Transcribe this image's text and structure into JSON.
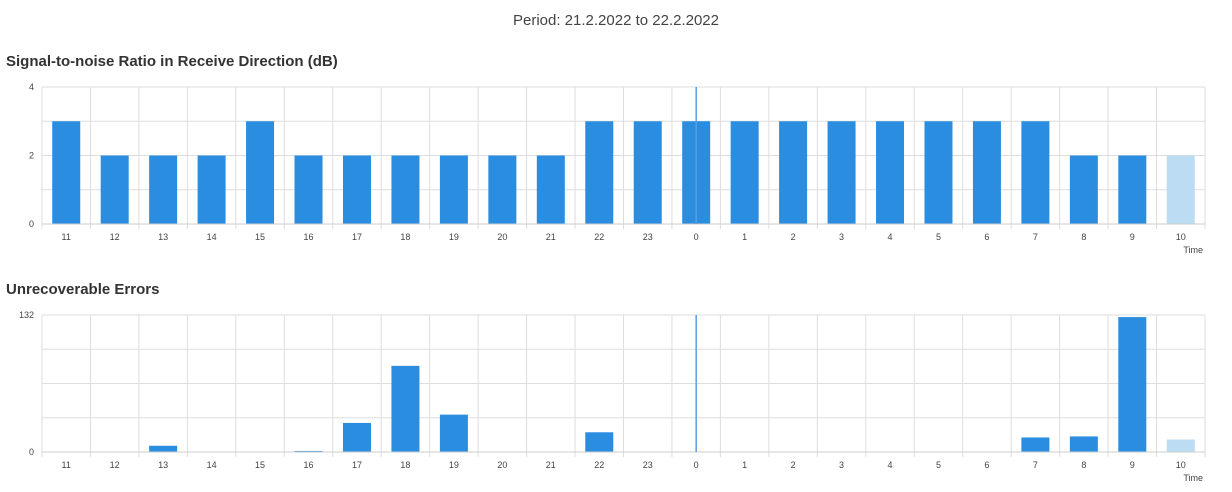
{
  "period": "Period: 21.2.2022 to 22.2.2022",
  "colors": {
    "bar": "#2a8de0",
    "bar_partial": "#bcdcf4",
    "grid": "#dddddd",
    "marker": "#5a9ee0"
  },
  "chart_data": [
    {
      "type": "bar",
      "title": "Signal-to-noise Ratio in Receive Direction (dB)",
      "xlabel": "Time",
      "ylabel": "",
      "categories": [
        "11",
        "12",
        "13",
        "14",
        "15",
        "16",
        "17",
        "18",
        "19",
        "20",
        "21",
        "22",
        "23",
        "0",
        "1",
        "2",
        "3",
        "4",
        "5",
        "6",
        "7",
        "8",
        "9",
        "10"
      ],
      "values": [
        3,
        2,
        2,
        2,
        3,
        2,
        2,
        2,
        2,
        2,
        2,
        3,
        3,
        3,
        3,
        3,
        3,
        3,
        3,
        3,
        3,
        2,
        2,
        2
      ],
      "partial_last": true,
      "ylim": [
        0,
        4
      ],
      "yticks": [
        "0",
        "2",
        "4"
      ],
      "grid": true,
      "day_marker": "0"
    },
    {
      "type": "bar",
      "title": "Unrecoverable Errors",
      "xlabel": "Time",
      "ylabel": "",
      "categories": [
        "11",
        "12",
        "13",
        "14",
        "15",
        "16",
        "17",
        "18",
        "19",
        "20",
        "21",
        "22",
        "23",
        "0",
        "1",
        "2",
        "3",
        "4",
        "5",
        "6",
        "7",
        "8",
        "9",
        "10"
      ],
      "values": [
        0,
        0,
        6,
        0,
        0,
        1,
        28,
        83,
        36,
        0,
        0,
        19,
        0,
        0,
        0,
        0,
        0,
        0,
        0,
        0,
        14,
        15,
        130,
        12
      ],
      "partial_last": true,
      "ylim": [
        0,
        132
      ],
      "yticks": [
        "0",
        "132"
      ],
      "grid": true,
      "day_marker": "0"
    }
  ]
}
